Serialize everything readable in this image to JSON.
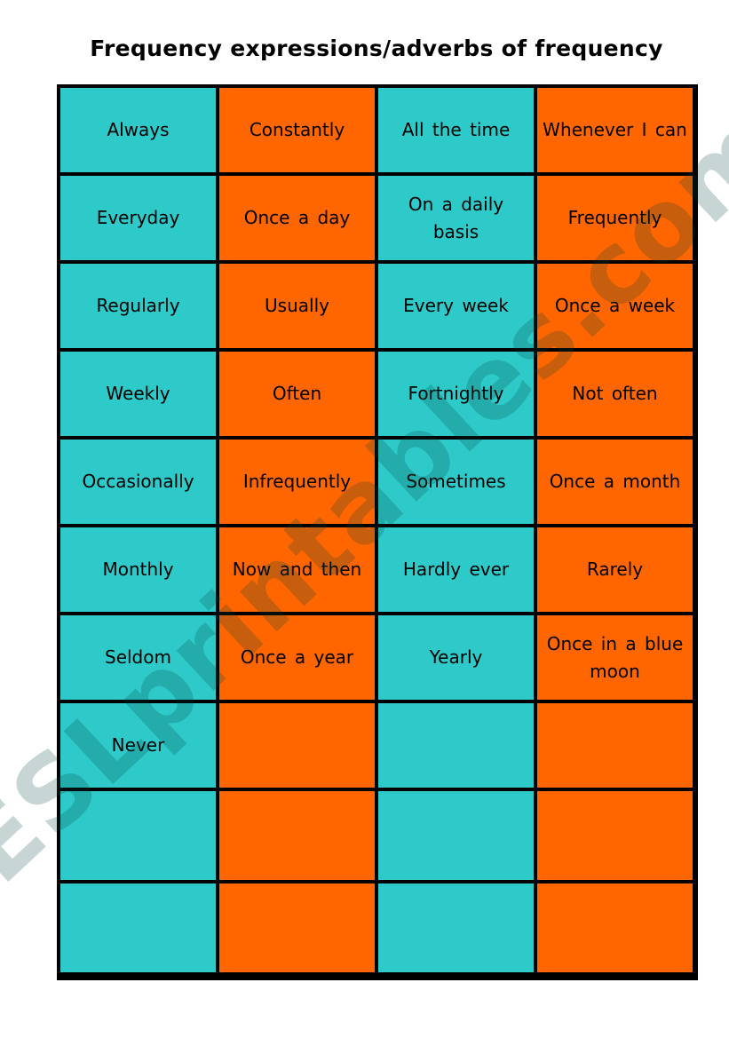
{
  "title": "Frequency expressions/adverbs of frequency",
  "colors": {
    "teal": "#2ec9c9",
    "orange": "#ff6600",
    "border": "#000000"
  },
  "rows": [
    [
      "Always",
      "Constantly",
      "All the time",
      "Whenever I can"
    ],
    [
      "Everyday",
      "Once a day",
      "On a daily basis",
      "Frequently"
    ],
    [
      "Regularly",
      "Usually",
      "Every week",
      "Once a week"
    ],
    [
      "Weekly",
      "Often",
      "Fortnightly",
      "Not often"
    ],
    [
      "Occasionally",
      "Infrequently",
      "Sometimes",
      "Once a month"
    ],
    [
      "Monthly",
      "Now and then",
      "Hardly ever",
      "Rarely"
    ],
    [
      "Seldom",
      "Once a year",
      "Yearly",
      "Once in a blue moon"
    ],
    [
      "Never",
      "",
      "",
      ""
    ],
    [
      "",
      "",
      "",
      ""
    ],
    [
      "",
      "",
      "",
      ""
    ]
  ],
  "watermark": "ESLprintables.com"
}
